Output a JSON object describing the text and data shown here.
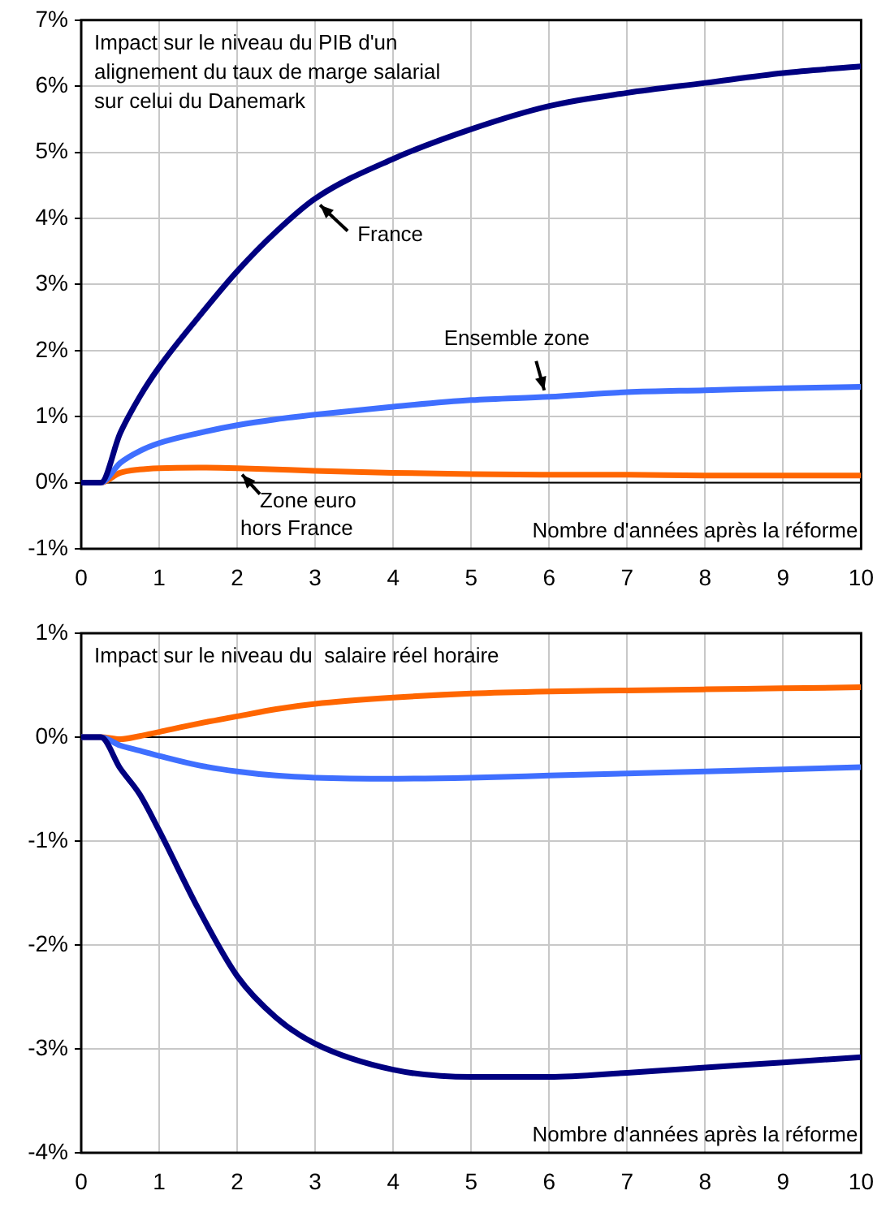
{
  "chart_data": [
    {
      "type": "line",
      "title": "Impact sur le niveau du PIB d'un\nalignement du taux de marge salarial\nsur celui du Danemark",
      "xlabel": "Nombre d'années après la réforme",
      "x": [
        0,
        0.25,
        0.5,
        0.75,
        1,
        1.5,
        2,
        2.5,
        3,
        4,
        5,
        6,
        7,
        8,
        9,
        10
      ],
      "series": [
        {
          "name": "France",
          "color": "#000080",
          "values": [
            0,
            0,
            0.75,
            1.3,
            1.75,
            2.5,
            3.2,
            3.8,
            4.3,
            4.9,
            5.35,
            5.7,
            5.9,
            6.05,
            6.2,
            6.3
          ]
        },
        {
          "name": "Ensemble zone",
          "color": "#3f6fff",
          "values": [
            0,
            0,
            0.3,
            0.48,
            0.6,
            0.75,
            0.87,
            0.96,
            1.03,
            1.15,
            1.25,
            1.3,
            1.37,
            1.4,
            1.43,
            1.45
          ]
        },
        {
          "name": "Zone euro\nhors France",
          "color": "#ff6600",
          "values": [
            0,
            0,
            0.15,
            0.2,
            0.22,
            0.23,
            0.22,
            0.2,
            0.18,
            0.15,
            0.13,
            0.12,
            0.12,
            0.11,
            0.11,
            0.11
          ]
        }
      ],
      "xlim": [
        0,
        10
      ],
      "xticks": [
        0,
        1,
        2,
        3,
        4,
        5,
        6,
        7,
        8,
        9,
        10
      ],
      "ylim": [
        -1,
        7
      ],
      "yticks": [
        {
          "value": -1,
          "label": "-1%"
        },
        {
          "value": 0,
          "label": "0%"
        },
        {
          "value": 1,
          "label": "1%"
        },
        {
          "value": 2,
          "label": "2%"
        },
        {
          "value": 3,
          "label": "3%"
        },
        {
          "value": 4,
          "label": "4%"
        },
        {
          "value": 5,
          "label": "5%"
        },
        {
          "value": 6,
          "label": "6%"
        },
        {
          "value": 7,
          "label": "7%"
        }
      ],
      "ref_lines": [
        {
          "axis": "y",
          "value": 0,
          "color": "#000000"
        }
      ],
      "grid": true,
      "legend": false,
      "marker": "none",
      "line_style": "solid"
    },
    {
      "type": "line",
      "title": "Impact sur le niveau du  salaire réel horaire",
      "xlabel": "Nombre d'années après la réforme",
      "x": [
        0,
        0.25,
        0.5,
        0.75,
        1,
        1.5,
        2,
        2.5,
        3,
        4,
        5,
        6,
        7,
        8,
        9,
        10
      ],
      "series": [
        {
          "color": "#000080",
          "values": [
            0,
            0,
            -0.3,
            -0.55,
            -0.9,
            -1.65,
            -2.3,
            -2.7,
            -2.95,
            -3.2,
            -3.27,
            -3.27,
            -3.23,
            -3.18,
            -3.13,
            -3.08
          ]
        },
        {
          "color": "#3f6fff",
          "values": [
            0,
            0,
            -0.08,
            -0.13,
            -0.18,
            -0.27,
            -0.33,
            -0.37,
            -0.39,
            -0.4,
            -0.39,
            -0.37,
            -0.35,
            -0.33,
            -0.31,
            -0.29
          ]
        },
        {
          "color": "#ff6600",
          "values": [
            0,
            0,
            -0.02,
            0.01,
            0.05,
            0.13,
            0.2,
            0.27,
            0.32,
            0.38,
            0.42,
            0.44,
            0.45,
            0.46,
            0.47,
            0.48
          ]
        }
      ],
      "xlim": [
        0,
        10
      ],
      "xticks": [
        0,
        1,
        2,
        3,
        4,
        5,
        6,
        7,
        8,
        9,
        10
      ],
      "ylim": [
        -4,
        1
      ],
      "yticks": [
        {
          "value": -4,
          "label": "-4%"
        },
        {
          "value": -3,
          "label": "-3%"
        },
        {
          "value": -2,
          "label": "-2%"
        },
        {
          "value": -1,
          "label": "-1%"
        },
        {
          "value": 0,
          "label": "0%"
        },
        {
          "value": 1,
          "label": "1%"
        }
      ],
      "ref_lines": [
        {
          "axis": "y",
          "value": 0,
          "color": "#000000"
        }
      ],
      "grid": true,
      "legend": false,
      "marker": "none",
      "line_style": "solid"
    }
  ]
}
